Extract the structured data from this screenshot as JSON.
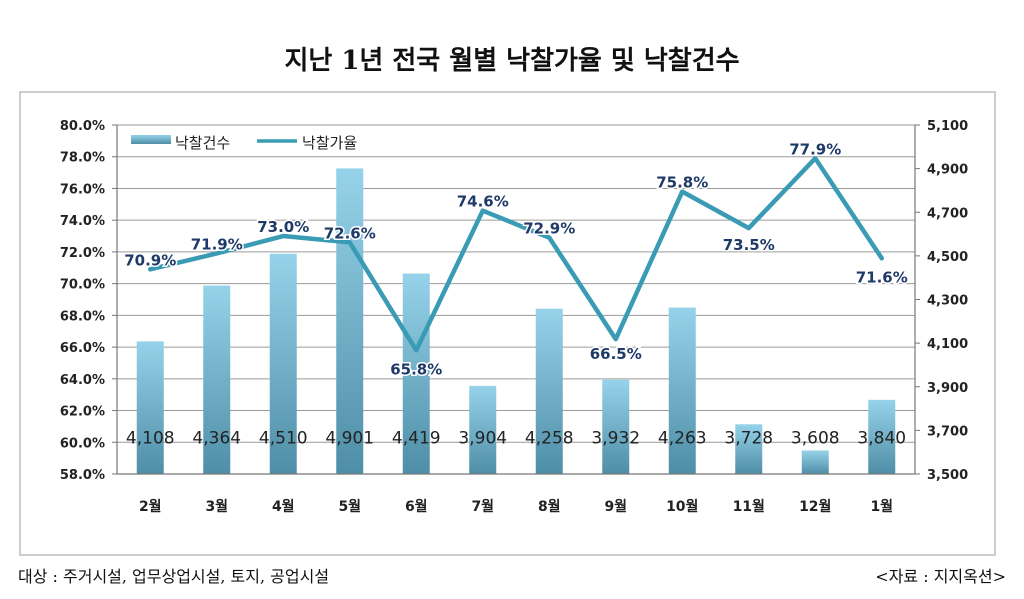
{
  "title": "지난 1년 전국 월별 낙찰가율 및 낙찰건수",
  "footer": {
    "target": "대상 : 주거시설, 업무상업시설, 토지, 공업시설",
    "source": "<자료 : 지지옥션>"
  },
  "chart_data": {
    "type": "bar+line",
    "title": "지난 1년 전국 월별 낙찰가율 및 낙찰건수",
    "categories": [
      "2월",
      "3월",
      "4월",
      "5월",
      "6월",
      "7월",
      "8월",
      "9월",
      "10월",
      "11월",
      "12월",
      "1월"
    ],
    "series": [
      {
        "name": "낙찰건수",
        "type": "bar",
        "axis": "right",
        "values": [
          4108,
          4364,
          4510,
          4901,
          4419,
          3904,
          4258,
          3932,
          4263,
          3728,
          3608,
          3840
        ],
        "labels": [
          "4,108",
          "4,364",
          "4,510",
          "4,901",
          "4,419",
          "3,904",
          "4,258",
          "3,932",
          "4,263",
          "3,728",
          "3,608",
          "3,840"
        ]
      },
      {
        "name": "낙찰가율",
        "type": "line",
        "axis": "left",
        "values": [
          70.9,
          71.9,
          73.0,
          72.6,
          65.8,
          74.6,
          72.9,
          66.5,
          75.8,
          73.5,
          77.9,
          71.6
        ],
        "labels": [
          "70.9%",
          "71.9%",
          "73.0%",
          "72.6%",
          "65.8%",
          "74.6%",
          "72.9%",
          "66.5%",
          "75.8%",
          "73.5%",
          "77.9%",
          "71.6%"
        ]
      }
    ],
    "y_left": {
      "min": 58,
      "max": 80,
      "step": 2,
      "ticks": [
        "58.0%",
        "60.0%",
        "62.0%",
        "64.0%",
        "66.0%",
        "68.0%",
        "70.0%",
        "72.0%",
        "74.0%",
        "76.0%",
        "78.0%",
        "80.0%"
      ]
    },
    "y_right": {
      "min": 3500,
      "max": 5100,
      "step": 200,
      "ticks": [
        "3,500",
        "3,700",
        "3,900",
        "4,100",
        "4,300",
        "4,500",
        "4,700",
        "4,900",
        "5,100"
      ]
    },
    "grid": true,
    "legend": "top-left",
    "colors": {
      "bar_top": "#8fcfe6",
      "bar_bottom": "#4f8fa8",
      "line": "#3a9bb5",
      "line_label": "#1f3a68"
    }
  }
}
